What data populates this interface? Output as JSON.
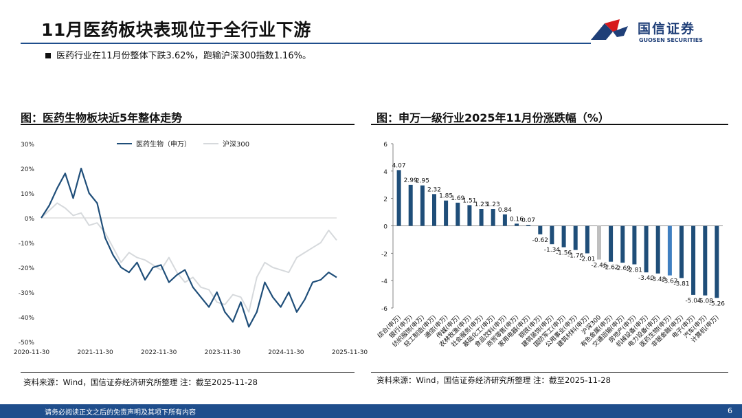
{
  "page": {
    "title": "11月医药板块表现位于全行业下游",
    "bullet": "医药行业在11月份整体下跌3.62%，跑输沪深300指数1.16%。",
    "footer_text": "请务必阅读正文之后的免责声明及其项下所有内容",
    "page_number": "6"
  },
  "logo": {
    "name_cn": "国信证券",
    "name_en": "GUOSEN SECURITIES",
    "colors": {
      "red": "#d7191c",
      "blue": "#1f3f78"
    }
  },
  "colors": {
    "accent": "#1f4e8c",
    "series_main": "#1f4e79",
    "series_index": "#d6d9dc",
    "highlight_bar": "#3f7fc1",
    "benchmark_bar": "#bfbfbf"
  },
  "left_panel": {
    "title": "图：医药生物板块近5年整体走势",
    "source": "资料来源：Wind，国信证券经济研究所整理 注：截至2025-11-28"
  },
  "right_panel": {
    "title": "图：申万一级行业2025年11月份涨跌幅（%）",
    "source": "资料来源：Wind，国信证券经济研究所整理 注：截至2025-11-28"
  },
  "chart_data": [
    {
      "type": "line",
      "title": "医药生物板块近5年整体走势",
      "x_ticks": [
        "2020-11-30",
        "2021-11-30",
        "2022-11-30",
        "2023-11-30",
        "2024-11-30",
        "2025-11-30"
      ],
      "y_ticks": [
        "30%",
        "20%",
        "10%",
        "0%",
        "-10%",
        "-20%",
        "-30%",
        "-40%",
        "-50%"
      ],
      "ylim": [
        -50,
        30
      ],
      "legend": [
        "医药生物（申万）",
        "沪深300"
      ],
      "series": [
        {
          "name": "医药生物（申万）",
          "values": [
            0,
            5,
            12,
            18,
            8,
            20,
            10,
            6,
            -8,
            -15,
            -20,
            -22,
            -18,
            -25,
            -20,
            -19,
            -26,
            -23,
            -21,
            -28,
            -32,
            -36,
            -30,
            -38,
            -42,
            -34,
            -44,
            -38,
            -26,
            -32,
            -36,
            -30,
            -38,
            -33,
            -26,
            -25,
            -22,
            -24
          ]
        },
        {
          "name": "沪深300",
          "values": [
            0,
            3,
            6,
            4,
            1,
            2,
            -3,
            -2,
            -6,
            -12,
            -18,
            -14,
            -16,
            -17,
            -19,
            -21,
            -16,
            -22,
            -26,
            -24,
            -28,
            -29,
            -34,
            -35,
            -31,
            -32,
            -38,
            -24,
            -18,
            -20,
            -21,
            -22,
            -16,
            -14,
            -12,
            -10,
            -5,
            -9
          ]
        }
      ]
    },
    {
      "type": "bar",
      "title": "申万一级行业2025年11月份涨跌幅（%）",
      "ylim": [
        -6,
        6
      ],
      "y_ticks": [
        "6",
        "4",
        "2",
        "0",
        "-2",
        "-4",
        "-6"
      ],
      "categories": [
        "综合(申万)",
        "银行(申万)",
        "纺织服饰(申万)",
        "轻工制造(申万)",
        "通信(申万)",
        "传媒(申万)",
        "农林牧渔(申万)",
        "社会服务(申万)",
        "基础化工(申万)",
        "食品饮料(申万)",
        "商贸零售(申万)",
        "家用电器(申万)",
        "钢铁(申万)",
        "建筑装饰(申万)",
        "国防军工(申万)",
        "公用事业(申万)",
        "建筑材料(申万)",
        "沪深300",
        "有色金属(申万)",
        "交通运输(申万)",
        "房地产(申万)",
        "机械设备(申万)",
        "电力设备(申万)",
        "医药生物(申万)",
        "非银金融(申万)",
        "电子(申万)",
        "汽车(申万)",
        "计算机(申万)"
      ],
      "values": [
        4.07,
        2.99,
        2.95,
        2.32,
        1.85,
        1.69,
        1.51,
        1.23,
        1.23,
        0.84,
        0.16,
        0.07,
        -0.62,
        -1.34,
        -1.56,
        -1.76,
        -2.01,
        -2.46,
        -2.62,
        -2.69,
        -2.81,
        -3.4,
        -3.48,
        -3.62,
        -3.81,
        -5.04,
        -5.08,
        -5.26
      ],
      "labels": [
        "4.07",
        "2.99",
        "2.95",
        "2.32",
        "1.85",
        "1.69",
        "1.51",
        "1.23",
        "1.23",
        "0.84",
        "0.16",
        "0.07",
        "-0.62",
        "-1.34",
        "-1.56",
        "-1.76",
        "-2.01",
        "-2.46",
        "-2.62",
        "-2.69",
        "-2.81",
        "-3.40",
        "-3.48",
        "-3.62",
        "-3.81",
        "-5.04",
        "-5.08",
        "-5.26"
      ],
      "highlight": {
        "医药生物(申万)": "highlight",
        "沪深300": "benchmark"
      }
    }
  ]
}
